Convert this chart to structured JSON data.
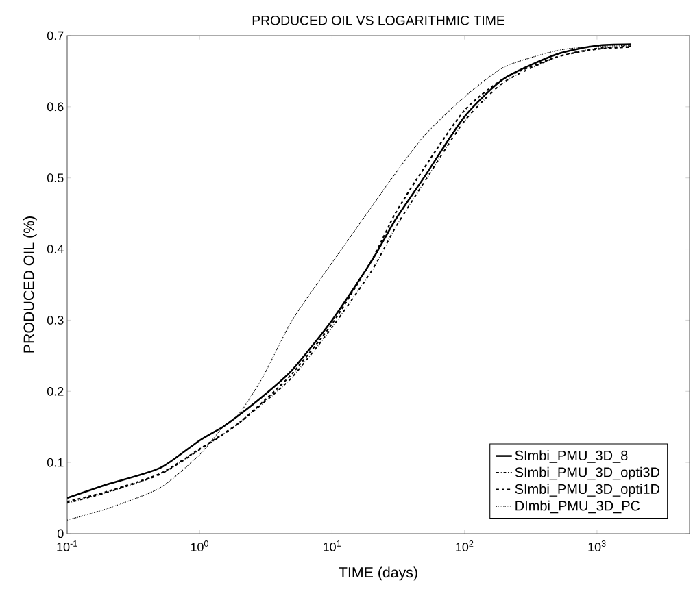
{
  "chart_data": {
    "type": "line",
    "title": "PRODUCED OIL VS LOGARITHMIC TIME",
    "xlabel": "TIME (days)",
    "ylabel": "PRODUCED OIL (%)",
    "log": "x",
    "xlim": [
      0.1,
      5000
    ],
    "ylim": [
      0,
      0.7
    ],
    "xticks": [
      {
        "value": 0.1,
        "label": "10$^{-1}$"
      },
      {
        "value": 1,
        "label": "10$^{0}$"
      },
      {
        "value": 10,
        "label": "10$^{1}$"
      },
      {
        "value": 100,
        "label": "10$^{2}$"
      },
      {
        "value": 1000,
        "label": "10$^{3}$"
      }
    ],
    "yticks": [
      0,
      0.1,
      0.2,
      0.3,
      0.4,
      0.5,
      0.6,
      0.7
    ],
    "x": [
      0.1,
      0.2,
      0.5,
      1,
      1.5,
      2,
      3,
      5,
      10,
      20,
      30,
      50,
      100,
      200,
      500,
      1000,
      1800
    ],
    "legend": "bottom right",
    "grid": false,
    "series": [
      {
        "name": "SImbi_PMU_3D_8",
        "color": "#000000",
        "line_style": "solid",
        "values": [
          0.05,
          0.069,
          0.092,
          0.131,
          0.15,
          0.167,
          0.193,
          0.23,
          0.3,
          0.384,
          0.441,
          0.502,
          0.586,
          0.64,
          0.674,
          0.686,
          0.688
        ]
      },
      {
        "name": "SImbi_PMU_3D_opti3D",
        "color": "#000000",
        "line_style": "dashdot",
        "values": [
          0.043,
          0.058,
          0.083,
          0.118,
          0.139,
          0.156,
          0.183,
          0.22,
          0.29,
          0.37,
          0.43,
          0.495,
          0.58,
          0.635,
          0.67,
          0.682,
          0.685
        ]
      },
      {
        "name": "SImbi_PMU_3D_opti1D",
        "color": "#000000",
        "line_style": "dashed",
        "values": [
          0.045,
          0.059,
          0.084,
          0.119,
          0.14,
          0.156,
          0.185,
          0.225,
          0.295,
          0.385,
          0.45,
          0.515,
          0.595,
          0.64,
          0.67,
          0.681,
          0.684
        ]
      },
      {
        "name": "DImbi_PMU_3D_PC",
        "color": "#000000",
        "line_style": "dotted",
        "values": [
          0.019,
          0.035,
          0.064,
          0.111,
          0.15,
          0.169,
          0.22,
          0.3,
          0.381,
          0.46,
          0.506,
          0.56,
          0.614,
          0.656,
          0.679,
          0.685,
          0.686
        ]
      }
    ]
  }
}
